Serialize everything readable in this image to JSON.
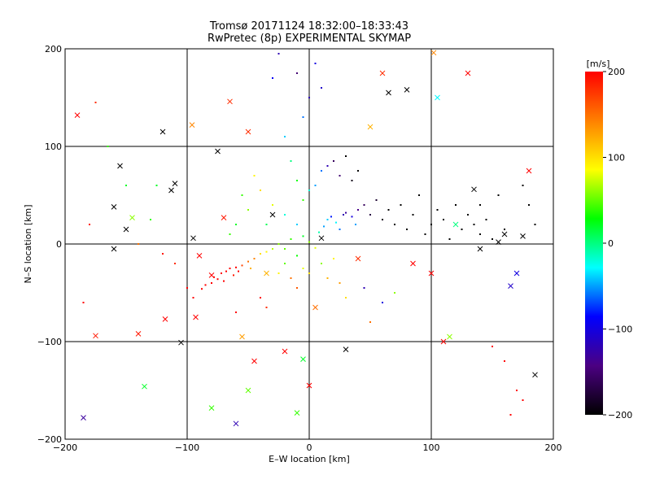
{
  "chart_data": {
    "type": "scatter",
    "title": "Tromsø 20171124 18:32:00–18:33:43",
    "subtitle": "RwPretec (8p) EXPERIMENTAL SKYMAP",
    "xlabel": "E–W location [km]",
    "ylabel": "N–S location [km]",
    "xlim": [
      -200,
      200
    ],
    "ylim": [
      -200,
      200
    ],
    "x_ticks": [
      -200,
      -100,
      0,
      100,
      200
    ],
    "y_ticks": [
      -200,
      -100,
      0,
      100,
      200
    ],
    "x_tick_labels": [
      "−200",
      "−100",
      "0",
      "100",
      "200"
    ],
    "y_tick_labels": [
      "−200",
      "−100",
      "0",
      "100",
      "200"
    ],
    "grid": true,
    "colorbar": {
      "label": "[m/s]",
      "range": [
        -200,
        200
      ],
      "ticks": [
        200,
        100,
        0,
        -100,
        -200
      ],
      "tick_labels": [
        "200",
        "100",
        "0",
        "−100",
        "−200"
      ],
      "colormap": [
        "#000000",
        "#4b0082",
        "#0000ff",
        "#00ffff",
        "#00ff00",
        "#ffff00",
        "#ff8000",
        "#ff0000"
      ]
    },
    "series": [
      {
        "marker": "x",
        "points": [
          [
            -190,
            132,
            200
          ],
          [
            -185,
            -178,
            -130
          ],
          [
            -175,
            -94,
            190
          ],
          [
            -160,
            38,
            -200
          ],
          [
            -160,
            -5,
            -200
          ],
          [
            -155,
            80,
            -200
          ],
          [
            -150,
            15,
            -200
          ],
          [
            -145,
            27,
            60
          ],
          [
            -140,
            -92,
            190
          ],
          [
            -135,
            -146,
            20
          ],
          [
            -120,
            115,
            -200
          ],
          [
            -118,
            -77,
            200
          ],
          [
            -113,
            55,
            -200
          ],
          [
            -110,
            62,
            -200
          ],
          [
            -105,
            -101,
            -200
          ],
          [
            -96,
            122,
            140
          ],
          [
            -95,
            6,
            -200
          ],
          [
            -93,
            -75,
            200
          ],
          [
            -90,
            -12,
            200
          ],
          [
            -80,
            -168,
            40
          ],
          [
            -75,
            95,
            -200
          ],
          [
            -70,
            27,
            190
          ],
          [
            -65,
            146,
            180
          ],
          [
            -60,
            -184,
            -120
          ],
          [
            -55,
            -95,
            130
          ],
          [
            -50,
            -150,
            50
          ],
          [
            -45,
            -120,
            200
          ],
          [
            -35,
            -30,
            120
          ],
          [
            -30,
            30,
            -200
          ],
          [
            -20,
            -110,
            200
          ],
          [
            -10,
            -173,
            40
          ],
          [
            -5,
            -118,
            20
          ],
          [
            0,
            -145,
            200
          ],
          [
            5,
            -65,
            150
          ],
          [
            10,
            6,
            -200
          ],
          [
            30,
            -108,
            -200
          ],
          [
            40,
            -15,
            180
          ],
          [
            50,
            120,
            120
          ],
          [
            60,
            175,
            180
          ],
          [
            65,
            155,
            -200
          ],
          [
            80,
            158,
            -200
          ],
          [
            85,
            -20,
            200
          ],
          [
            100,
            -30,
            200
          ],
          [
            102,
            196,
            140
          ],
          [
            105,
            150,
            -30
          ],
          [
            115,
            -95,
            60
          ],
          [
            120,
            20,
            0
          ],
          [
            130,
            175,
            200
          ],
          [
            135,
            56,
            -200
          ],
          [
            140,
            -5,
            -200
          ],
          [
            155,
            2,
            -200
          ],
          [
            160,
            10,
            -200
          ],
          [
            165,
            -43,
            -110
          ],
          [
            170,
            -30,
            -100
          ],
          [
            175,
            8,
            -200
          ],
          [
            180,
            75,
            200
          ],
          [
            185,
            -134,
            -200
          ],
          [
            110,
            -100,
            200
          ],
          [
            -80,
            -32,
            200
          ],
          [
            -50,
            115,
            180
          ]
        ]
      },
      {
        "marker": "dot",
        "points": [
          [
            -72,
            -30,
            200
          ],
          [
            -75,
            -36,
            200
          ],
          [
            -80,
            -40,
            200
          ],
          [
            -85,
            -42,
            200
          ],
          [
            -68,
            -28,
            200
          ],
          [
            -65,
            -25,
            200
          ],
          [
            -60,
            -24,
            200
          ],
          [
            -78,
            -34,
            200
          ],
          [
            -70,
            -38,
            200
          ],
          [
            -88,
            -46,
            200
          ],
          [
            -62,
            -32,
            190
          ],
          [
            -58,
            -28,
            200
          ],
          [
            -55,
            -22,
            170
          ],
          [
            -50,
            -18,
            150
          ],
          [
            -45,
            -15,
            140
          ],
          [
            -48,
            -25,
            120
          ],
          [
            -40,
            -10,
            100
          ],
          [
            -35,
            -8,
            90
          ],
          [
            -30,
            -5,
            70
          ],
          [
            -25,
            0,
            60
          ],
          [
            -20,
            -5,
            50
          ],
          [
            -15,
            5,
            40
          ],
          [
            -10,
            -12,
            30
          ],
          [
            -5,
            8,
            20
          ],
          [
            0,
            2,
            60
          ],
          [
            5,
            -4,
            80
          ],
          [
            8,
            12,
            -10
          ],
          [
            12,
            18,
            -50
          ],
          [
            15,
            25,
            -40
          ],
          [
            18,
            28,
            -80
          ],
          [
            22,
            22,
            -30
          ],
          [
            25,
            15,
            -60
          ],
          [
            28,
            30,
            -120
          ],
          [
            30,
            32,
            -130
          ],
          [
            35,
            28,
            -100
          ],
          [
            38,
            20,
            -50
          ],
          [
            40,
            35,
            -140
          ],
          [
            45,
            40,
            -160
          ],
          [
            50,
            30,
            -170
          ],
          [
            55,
            45,
            -180
          ],
          [
            60,
            25,
            -190
          ],
          [
            65,
            35,
            -200
          ],
          [
            70,
            20,
            -200
          ],
          [
            75,
            40,
            -200
          ],
          [
            80,
            15,
            -200
          ],
          [
            85,
            30,
            -200
          ],
          [
            90,
            50,
            -200
          ],
          [
            95,
            10,
            -200
          ],
          [
            100,
            20,
            -200
          ],
          [
            105,
            35,
            -200
          ],
          [
            110,
            25,
            -200
          ],
          [
            115,
            5,
            -200
          ],
          [
            120,
            40,
            -200
          ],
          [
            125,
            15,
            -200
          ],
          [
            130,
            30,
            -200
          ],
          [
            135,
            20,
            -200
          ],
          [
            140,
            10,
            -200
          ],
          [
            145,
            25,
            -200
          ],
          [
            150,
            5,
            -200
          ],
          [
            160,
            15,
            -200
          ],
          [
            -5,
            45,
            40
          ],
          [
            0,
            55,
            -20
          ],
          [
            5,
            60,
            -50
          ],
          [
            10,
            75,
            -60
          ],
          [
            15,
            80,
            -120
          ],
          [
            20,
            85,
            -160
          ],
          [
            25,
            70,
            -150
          ],
          [
            30,
            90,
            -200
          ],
          [
            35,
            65,
            -190
          ],
          [
            40,
            75,
            -200
          ],
          [
            -10,
            65,
            30
          ],
          [
            -15,
            85,
            0
          ],
          [
            -20,
            110,
            -40
          ],
          [
            -5,
            130,
            -60
          ],
          [
            0,
            150,
            -120
          ],
          [
            -10,
            175,
            -150
          ],
          [
            5,
            185,
            -100
          ],
          [
            -25,
            195,
            -120
          ],
          [
            -30,
            170,
            -90
          ],
          [
            10,
            160,
            -110
          ],
          [
            -30,
            40,
            80
          ],
          [
            -40,
            55,
            100
          ],
          [
            -45,
            70,
            90
          ],
          [
            -50,
            35,
            60
          ],
          [
            -55,
            50,
            40
          ],
          [
            -60,
            20,
            20
          ],
          [
            -65,
            10,
            40
          ],
          [
            -35,
            20,
            10
          ],
          [
            -20,
            30,
            -20
          ],
          [
            -10,
            20,
            -40
          ],
          [
            -5,
            -25,
            80
          ],
          [
            0,
            -30,
            100
          ],
          [
            10,
            -20,
            60
          ],
          [
            15,
            -35,
            120
          ],
          [
            20,
            -15,
            90
          ],
          [
            25,
            -40,
            130
          ],
          [
            -15,
            -35,
            150
          ],
          [
            -10,
            -45,
            160
          ],
          [
            -25,
            -30,
            90
          ],
          [
            -20,
            -20,
            50
          ],
          [
            -40,
            -55,
            200
          ],
          [
            -35,
            -65,
            180
          ],
          [
            -60,
            -70,
            200
          ],
          [
            -100,
            -45,
            200
          ],
          [
            -95,
            -55,
            200
          ],
          [
            -110,
            -20,
            180
          ],
          [
            -120,
            -10,
            190
          ],
          [
            -140,
            0,
            150
          ],
          [
            -130,
            25,
            40
          ],
          [
            -125,
            60,
            20
          ],
          [
            60,
            -60,
            -100
          ],
          [
            70,
            -50,
            60
          ],
          [
            45,
            -45,
            -120
          ],
          [
            30,
            -55,
            100
          ],
          [
            50,
            -80,
            150
          ],
          [
            150,
            -105,
            200
          ],
          [
            160,
            -120,
            200
          ],
          [
            170,
            -150,
            200
          ],
          [
            175,
            -160,
            200
          ],
          [
            165,
            -175,
            200
          ],
          [
            140,
            40,
            -200
          ],
          [
            155,
            50,
            -200
          ],
          [
            175,
            60,
            -200
          ],
          [
            180,
            40,
            -200
          ],
          [
            185,
            20,
            -200
          ],
          [
            -150,
            60,
            20
          ],
          [
            -165,
            100,
            40
          ],
          [
            -175,
            145,
            180
          ],
          [
            -180,
            20,
            190
          ],
          [
            -185,
            -60,
            200
          ]
        ]
      }
    ]
  }
}
